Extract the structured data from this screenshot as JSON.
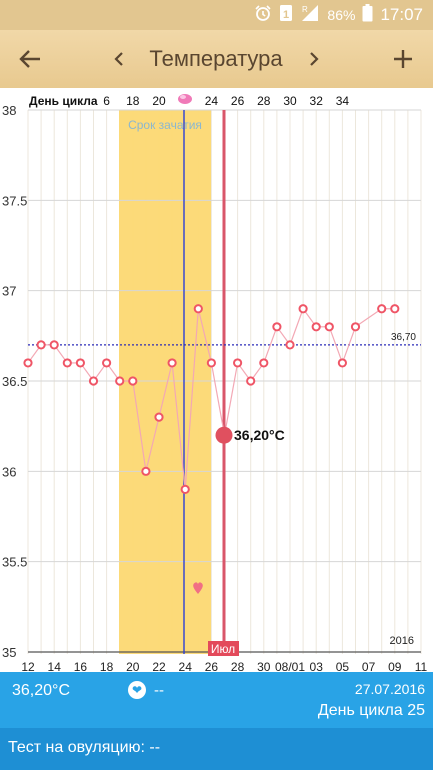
{
  "status_bar": {
    "battery": "86%",
    "time": "17:07"
  },
  "header": {
    "title": "Температура"
  },
  "chart_data": {
    "type": "line",
    "header_label": "День цикла",
    "cycle_ticks": [
      "6",
      "18",
      "20",
      "24",
      "26",
      "28",
      "30",
      "32",
      "34"
    ],
    "y_ticks": [
      "38",
      "37.5",
      "37",
      "36.5",
      "36",
      "35.5",
      "35"
    ],
    "x_ticks": [
      "12",
      "14",
      "16",
      "18",
      "20",
      "22",
      "24",
      "26",
      "28",
      "30",
      "08/01",
      "03",
      "05",
      "07",
      "09",
      "11"
    ],
    "ylim": [
      35,
      38
    ],
    "year_label": "2016",
    "month_label": "Июл",
    "fertile_label": "Срок зачатия",
    "coverline": {
      "value": 36.7,
      "label": "36,70"
    },
    "selected_label": "36,20°C",
    "series": [
      {
        "values": [
          36.6,
          36.7,
          36.7,
          36.6,
          36.6,
          36.5,
          36.6,
          36.5,
          36.5,
          36.0,
          36.3,
          36.6,
          35.9,
          36.9,
          36.6,
          36.2,
          36.6,
          36.5,
          36.6,
          36.8,
          36.7,
          36.9,
          36.8,
          36.8,
          36.6,
          36.8,
          null,
          36.9,
          36.9
        ]
      }
    ]
  },
  "bottom": {
    "temperature": "36,20°C",
    "ovulation_mark": "--",
    "date": "27.07.2016",
    "cycle_day": "День цикла 25",
    "test_line": "Тест на овуляцию: --"
  }
}
